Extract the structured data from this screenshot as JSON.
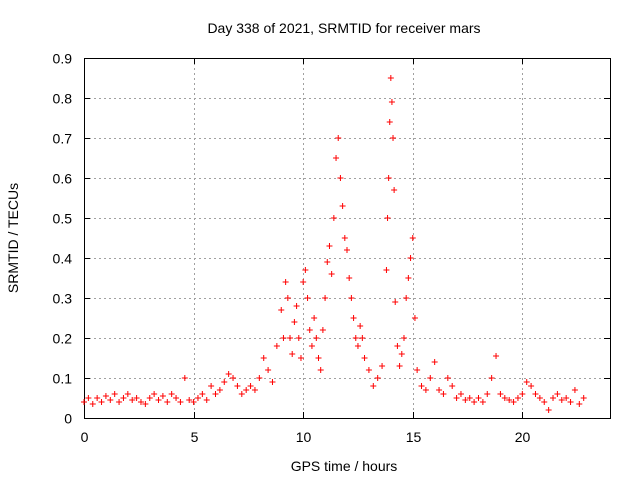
{
  "chart_data": {
    "type": "scatter",
    "title": "Day 338 of 2021, SRMTID for receiver mars",
    "xlabel": "GPS time / hours",
    "ylabel": "SRMTID / TECUs",
    "xlim": [
      0,
      24
    ],
    "ylim": [
      0,
      0.9
    ],
    "xticks": [
      0,
      5,
      10,
      15,
      20
    ],
    "yticks": [
      0,
      0.1,
      0.2,
      0.3,
      0.4,
      0.5,
      0.6,
      0.7,
      0.8,
      0.9
    ],
    "xtick_labels": [
      "0",
      "5",
      "10",
      "15",
      "20"
    ],
    "ytick_labels": [
      "0",
      "0.1",
      "0.2",
      "0.3",
      "0.4",
      "0.5",
      "0.6",
      "0.7",
      "0.8",
      "0.9"
    ],
    "grid": true,
    "marker": "+",
    "color": "#ff0000",
    "series": [
      {
        "name": "SRMTID",
        "points": [
          [
            0.0,
            0.04
          ],
          [
            0.2,
            0.05
          ],
          [
            0.4,
            0.035
          ],
          [
            0.6,
            0.05
          ],
          [
            0.8,
            0.04
          ],
          [
            1.0,
            0.055
          ],
          [
            1.2,
            0.045
          ],
          [
            1.4,
            0.06
          ],
          [
            1.6,
            0.04
          ],
          [
            1.8,
            0.05
          ],
          [
            2.0,
            0.06
          ],
          [
            2.2,
            0.045
          ],
          [
            2.4,
            0.05
          ],
          [
            2.6,
            0.04
          ],
          [
            2.8,
            0.035
          ],
          [
            3.0,
            0.05
          ],
          [
            3.2,
            0.06
          ],
          [
            3.4,
            0.045
          ],
          [
            3.6,
            0.055
          ],
          [
            3.8,
            0.04
          ],
          [
            4.0,
            0.06
          ],
          [
            4.2,
            0.05
          ],
          [
            4.4,
            0.04
          ],
          [
            4.6,
            0.1
          ],
          [
            4.8,
            0.045
          ],
          [
            5.0,
            0.04
          ],
          [
            5.2,
            0.05
          ],
          [
            5.4,
            0.06
          ],
          [
            5.6,
            0.045
          ],
          [
            5.8,
            0.08
          ],
          [
            6.0,
            0.06
          ],
          [
            6.2,
            0.07
          ],
          [
            6.4,
            0.09
          ],
          [
            6.6,
            0.11
          ],
          [
            6.8,
            0.1
          ],
          [
            7.0,
            0.08
          ],
          [
            7.2,
            0.06
          ],
          [
            7.4,
            0.07
          ],
          [
            7.6,
            0.08
          ],
          [
            7.8,
            0.07
          ],
          [
            8.0,
            0.1
          ],
          [
            8.2,
            0.15
          ],
          [
            8.4,
            0.12
          ],
          [
            8.6,
            0.09
          ],
          [
            8.8,
            0.18
          ],
          [
            9.0,
            0.27
          ],
          [
            9.1,
            0.2
          ],
          [
            9.2,
            0.34
          ],
          [
            9.3,
            0.3
          ],
          [
            9.4,
            0.2
          ],
          [
            9.5,
            0.16
          ],
          [
            9.6,
            0.24
          ],
          [
            9.7,
            0.28
          ],
          [
            9.8,
            0.2
          ],
          [
            9.9,
            0.15
          ],
          [
            10.0,
            0.34
          ],
          [
            10.1,
            0.37
          ],
          [
            10.2,
            0.3
          ],
          [
            10.3,
            0.22
          ],
          [
            10.4,
            0.18
          ],
          [
            10.5,
            0.25
          ],
          [
            10.6,
            0.2
          ],
          [
            10.7,
            0.15
          ],
          [
            10.8,
            0.12
          ],
          [
            10.9,
            0.22
          ],
          [
            11.0,
            0.3
          ],
          [
            11.1,
            0.39
          ],
          [
            11.2,
            0.43
          ],
          [
            11.3,
            0.36
          ],
          [
            11.4,
            0.5
          ],
          [
            11.5,
            0.65
          ],
          [
            11.6,
            0.7
          ],
          [
            11.7,
            0.6
          ],
          [
            11.8,
            0.53
          ],
          [
            11.9,
            0.45
          ],
          [
            12.0,
            0.42
          ],
          [
            12.1,
            0.35
          ],
          [
            12.2,
            0.3
          ],
          [
            12.3,
            0.25
          ],
          [
            12.4,
            0.2
          ],
          [
            12.5,
            0.18
          ],
          [
            12.6,
            0.23
          ],
          [
            12.7,
            0.2
          ],
          [
            12.8,
            0.15
          ],
          [
            13.0,
            0.12
          ],
          [
            13.2,
            0.08
          ],
          [
            13.4,
            0.1
          ],
          [
            13.6,
            0.13
          ],
          [
            13.8,
            0.37
          ],
          [
            13.85,
            0.5
          ],
          [
            13.9,
            0.6
          ],
          [
            13.95,
            0.74
          ],
          [
            14.0,
            0.85
          ],
          [
            14.05,
            0.79
          ],
          [
            14.1,
            0.7
          ],
          [
            14.15,
            0.57
          ],
          [
            14.2,
            0.29
          ],
          [
            14.3,
            0.18
          ],
          [
            14.4,
            0.13
          ],
          [
            14.5,
            0.16
          ],
          [
            14.6,
            0.2
          ],
          [
            14.7,
            0.3
          ],
          [
            14.8,
            0.35
          ],
          [
            14.9,
            0.4
          ],
          [
            15.0,
            0.45
          ],
          [
            15.1,
            0.25
          ],
          [
            15.2,
            0.12
          ],
          [
            15.4,
            0.08
          ],
          [
            15.6,
            0.07
          ],
          [
            15.8,
            0.1
          ],
          [
            16.0,
            0.14
          ],
          [
            16.2,
            0.07
          ],
          [
            16.4,
            0.06
          ],
          [
            16.6,
            0.1
          ],
          [
            16.8,
            0.08
          ],
          [
            17.0,
            0.05
          ],
          [
            17.2,
            0.06
          ],
          [
            17.4,
            0.045
          ],
          [
            17.6,
            0.05
          ],
          [
            17.8,
            0.04
          ],
          [
            18.0,
            0.05
          ],
          [
            18.2,
            0.04
          ],
          [
            18.4,
            0.06
          ],
          [
            18.6,
            0.1
          ],
          [
            18.8,
            0.155
          ],
          [
            19.0,
            0.06
          ],
          [
            19.2,
            0.05
          ],
          [
            19.4,
            0.045
          ],
          [
            19.6,
            0.04
          ],
          [
            19.8,
            0.05
          ],
          [
            20.0,
            0.06
          ],
          [
            20.2,
            0.09
          ],
          [
            20.4,
            0.08
          ],
          [
            20.6,
            0.06
          ],
          [
            20.8,
            0.05
          ],
          [
            21.0,
            0.04
          ],
          [
            21.2,
            0.02
          ],
          [
            21.4,
            0.05
          ],
          [
            21.6,
            0.06
          ],
          [
            21.8,
            0.045
          ],
          [
            22.0,
            0.05
          ],
          [
            22.2,
            0.04
          ],
          [
            22.4,
            0.07
          ],
          [
            22.6,
            0.035
          ],
          [
            22.8,
            0.05
          ]
        ]
      }
    ]
  }
}
